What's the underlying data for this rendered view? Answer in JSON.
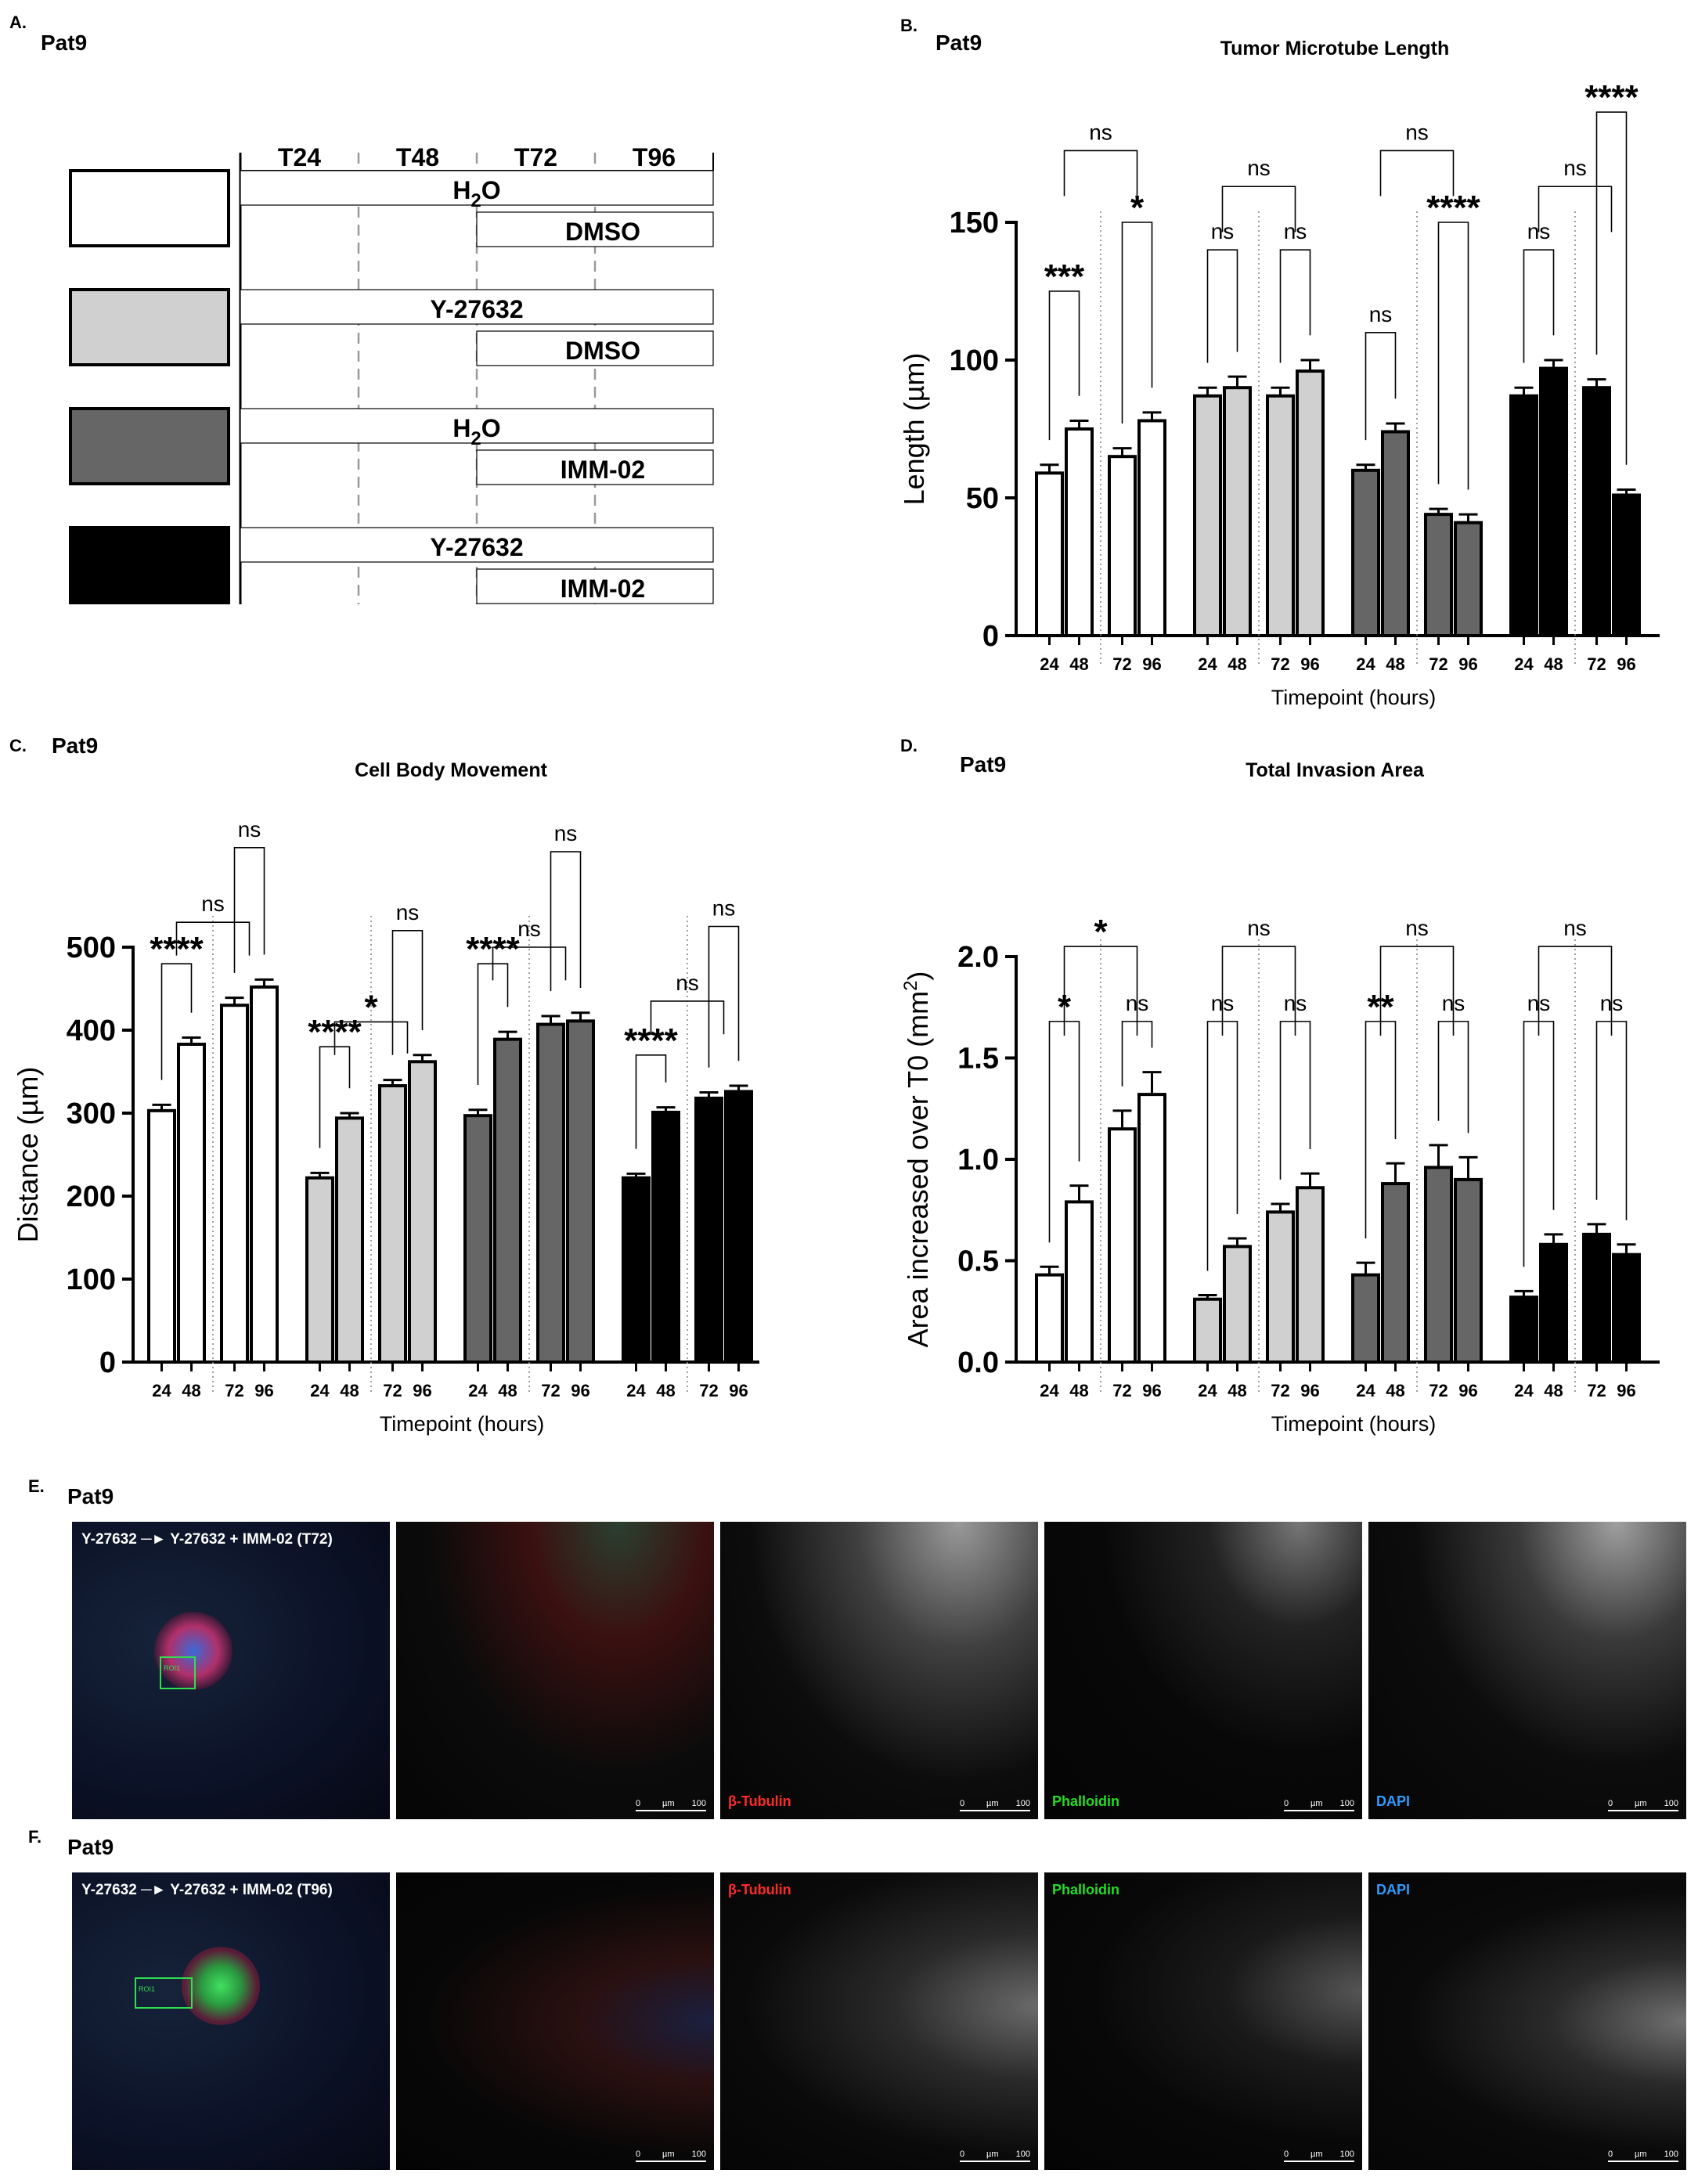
{
  "panel_a": {
    "letter": "A.",
    "title": "Pat9",
    "columns": [
      "T24",
      "T48",
      "T72",
      "T96"
    ],
    "groups": [
      {
        "color": "#ffffff",
        "row1": "H",
        "row1_sub": "2",
        "row1_tail": "O",
        "row2": "DMSO"
      },
      {
        "color": "#d0d0d0",
        "row1": "Y-27632",
        "row1_sub": "",
        "row1_tail": "",
        "row2": "DMSO"
      },
      {
        "color": "#666666",
        "row1": "H",
        "row1_sub": "2",
        "row1_tail": "O",
        "row2": "IMM-02"
      },
      {
        "color": "#000000",
        "row1": "Y-27632",
        "row1_sub": "",
        "row1_tail": "",
        "row2": "IMM-02"
      }
    ]
  },
  "chart_data": [
    {
      "panel": "B.",
      "subtitle": "Pat9",
      "type": "bar",
      "title": "Tumor Microtube Length",
      "xlabel": "Timepoint (hours)",
      "ylabel": "Length (µm)",
      "ylim": [
        0,
        150
      ],
      "yticks": [
        0,
        50,
        100,
        150
      ],
      "categories": [
        "24",
        "48",
        "72",
        "96"
      ],
      "series": [
        {
          "color": "#ffffff",
          "values": [
            59,
            75,
            65,
            78
          ],
          "errors": [
            3,
            3,
            3,
            3
          ]
        },
        {
          "color": "#d0d0d0",
          "values": [
            87,
            90,
            87,
            96
          ],
          "errors": [
            3,
            4,
            3,
            4
          ]
        },
        {
          "color": "#666666",
          "values": [
            60,
            74,
            44,
            41
          ],
          "errors": [
            2,
            3,
            2,
            3
          ]
        },
        {
          "color": "#000000",
          "values": [
            87,
            97,
            90,
            51
          ],
          "errors": [
            3,
            3,
            3,
            2
          ]
        }
      ],
      "annotations": [
        [
          {
            "a": 0,
            "b": 1,
            "y": 125,
            "label": "***"
          },
          {
            "a": 2,
            "b": 3,
            "y": 150,
            "label": "*"
          },
          {
            "a": "01",
            "b": "23",
            "y": 176,
            "label": "ns"
          }
        ],
        [
          {
            "a": 0,
            "b": 1,
            "y": 140,
            "label": "ns"
          },
          {
            "a": 2,
            "b": 3,
            "y": 140,
            "label": "ns"
          },
          {
            "a": "01",
            "b": "23",
            "y": 163,
            "label": "ns"
          }
        ],
        [
          {
            "a": 0,
            "b": 1,
            "y": 110,
            "label": "ns"
          },
          {
            "a": 2,
            "b": 3,
            "y": 150,
            "label": "****"
          },
          {
            "a": "01",
            "b": "23",
            "y": 176,
            "label": "ns"
          }
        ],
        [
          {
            "a": 0,
            "b": 1,
            "y": 140,
            "label": "ns"
          },
          {
            "a": 2,
            "b": 3,
            "y": 190,
            "label": "****"
          },
          {
            "a": "01",
            "b": "23",
            "y": 163,
            "label": "ns"
          }
        ]
      ]
    },
    {
      "panel": "C.",
      "subtitle": "Pat9",
      "type": "bar",
      "title": "Cell Body Movement",
      "xlabel": "Timepoint (hours)",
      "ylabel": "Distance (µm)",
      "ylim": [
        0,
        500
      ],
      "yticks": [
        0,
        100,
        200,
        300,
        400,
        500
      ],
      "categories": [
        "24",
        "48",
        "72",
        "96"
      ],
      "series": [
        {
          "color": "#ffffff",
          "values": [
            303,
            383,
            430,
            452
          ],
          "errors": [
            7,
            8,
            9,
            9
          ]
        },
        {
          "color": "#d0d0d0",
          "values": [
            222,
            294,
            333,
            362
          ],
          "errors": [
            6,
            6,
            7,
            8
          ]
        },
        {
          "color": "#666666",
          "values": [
            297,
            389,
            407,
            411
          ],
          "errors": [
            7,
            9,
            10,
            10
          ]
        },
        {
          "color": "#000000",
          "values": [
            222,
            301,
            318,
            326
          ],
          "errors": [
            5,
            6,
            7,
            7
          ]
        }
      ],
      "annotations": [
        [
          {
            "a": 0,
            "b": 1,
            "y": 480,
            "label": "****"
          },
          {
            "a": "01",
            "b": "23",
            "y": 530,
            "label": "ns"
          },
          {
            "a": 2,
            "b": 3,
            "y": 620,
            "label": "ns"
          }
        ],
        [
          {
            "a": 0,
            "b": 1,
            "y": 380,
            "label": "****"
          },
          {
            "a": "01",
            "b": "23",
            "y": 410,
            "label": "*"
          },
          {
            "a": 2,
            "b": 3,
            "y": 520,
            "label": "ns"
          }
        ],
        [
          {
            "a": 0,
            "b": 1,
            "y": 480,
            "label": "****"
          },
          {
            "a": "01",
            "b": "23",
            "y": 500,
            "label": "ns"
          },
          {
            "a": 2,
            "b": 3,
            "y": 615,
            "label": "ns"
          }
        ],
        [
          {
            "a": 0,
            "b": 1,
            "y": 370,
            "label": "****"
          },
          {
            "a": "01",
            "b": "23",
            "y": 435,
            "label": "ns"
          },
          {
            "a": 2,
            "b": 3,
            "y": 525,
            "label": "ns"
          }
        ]
      ]
    },
    {
      "panel": "D.",
      "subtitle": "Pat9",
      "type": "bar",
      "title": "Total Invasion Area",
      "xlabel": "Timepoint (hours)",
      "ylabel": "Area increased over T0 (mm",
      "ylabel_sup": "2",
      "ylabel_tail": ")",
      "ylim": [
        0,
        2.0
      ],
      "yticks": [
        "0.0",
        "0.5",
        "1.0",
        "1.5",
        "2.0"
      ],
      "categories": [
        "24",
        "48",
        "72",
        "96"
      ],
      "series": [
        {
          "color": "#ffffff",
          "values": [
            0.43,
            0.79,
            1.15,
            1.32
          ],
          "errors": [
            0.04,
            0.08,
            0.09,
            0.11
          ]
        },
        {
          "color": "#d0d0d0",
          "values": [
            0.31,
            0.57,
            0.74,
            0.86
          ],
          "errors": [
            0.02,
            0.04,
            0.04,
            0.07
          ]
        },
        {
          "color": "#666666",
          "values": [
            0.43,
            0.88,
            0.96,
            0.9
          ],
          "errors": [
            0.06,
            0.1,
            0.11,
            0.11
          ]
        },
        {
          "color": "#000000",
          "values": [
            0.32,
            0.58,
            0.63,
            0.53
          ],
          "errors": [
            0.03,
            0.05,
            0.05,
            0.05
          ]
        }
      ],
      "annotations": [
        [
          {
            "a": 0,
            "b": 1,
            "y": 1.68,
            "label": "*"
          },
          {
            "a": "01",
            "b": "23",
            "y": 2.05,
            "label": "*"
          },
          {
            "a": 2,
            "b": 3,
            "y": 1.68,
            "label": "ns"
          }
        ],
        [
          {
            "a": 0,
            "b": 1,
            "y": 1.68,
            "label": "ns"
          },
          {
            "a": "01",
            "b": "23",
            "y": 2.05,
            "label": "ns"
          },
          {
            "a": 2,
            "b": 3,
            "y": 1.68,
            "label": "ns"
          }
        ],
        [
          {
            "a": 0,
            "b": 1,
            "y": 1.68,
            "label": "**"
          },
          {
            "a": "01",
            "b": "23",
            "y": 2.05,
            "label": "ns"
          },
          {
            "a": 2,
            "b": 3,
            "y": 1.68,
            "label": "ns"
          }
        ],
        [
          {
            "a": 0,
            "b": 1,
            "y": 1.68,
            "label": "ns"
          },
          {
            "a": "01",
            "b": "23",
            "y": 2.05,
            "label": "ns"
          },
          {
            "a": 2,
            "b": 3,
            "y": 1.68,
            "label": "ns"
          }
        ]
      ]
    }
  ],
  "panel_e": {
    "letter": "E.",
    "title": "Pat9",
    "condition": "Y-27632 ─► Y-27632 + IMM-02 (T72)",
    "roi": "ROI1",
    "channels": [
      {
        "label": "",
        "color": "#ffffff"
      },
      {
        "label": "β-Tubulin",
        "color": "#ff2a2a"
      },
      {
        "label": "Phalloidin",
        "color": "#22dd22"
      },
      {
        "label": "DAPI",
        "color": "#2e9bff"
      }
    ],
    "scale": {
      "zero": "0",
      "unit": "µm",
      "max": "100"
    }
  },
  "panel_f": {
    "letter": "F.",
    "title": "Pat9",
    "condition": "Y-27632 ─► Y-27632 + IMM-02 (T96)",
    "roi": "ROI1",
    "channels": [
      {
        "label": "",
        "color": "#ffffff"
      },
      {
        "label": "β-Tubulin",
        "color": "#ff2a2a"
      },
      {
        "label": "Phalloidin",
        "color": "#22dd22"
      },
      {
        "label": "DAPI",
        "color": "#2e9bff"
      }
    ],
    "scale": {
      "zero": "0",
      "unit": "µm",
      "max": "100"
    }
  }
}
